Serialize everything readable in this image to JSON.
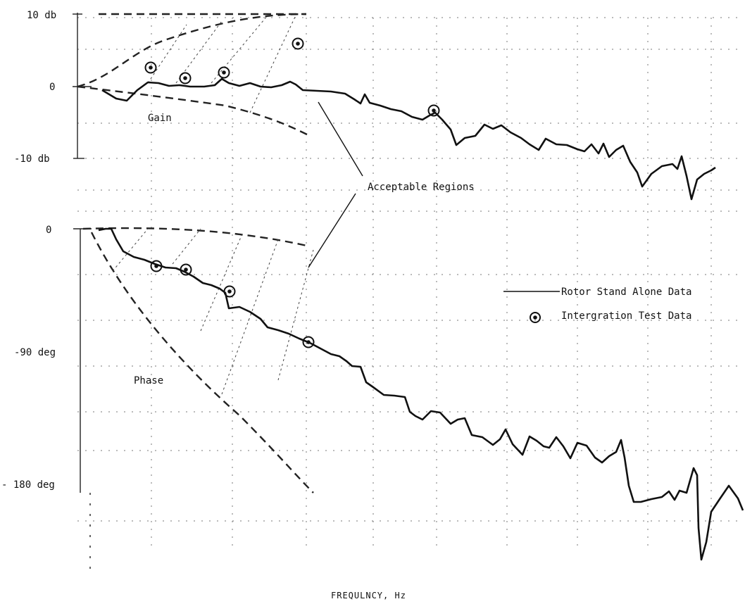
{
  "chart_data": [
    {
      "type": "line",
      "panel": "gain",
      "ylabel_ticks": [
        "10 db",
        "0",
        "-10 db"
      ],
      "ylim": [
        -10,
        10
      ],
      "annotation": "Gain",
      "x": [
        0.35,
        0.5,
        0.8,
        1.0,
        1.3,
        1.8,
        2.5,
        3.5,
        5.0,
        7.0,
        10.0
      ],
      "series": [
        {
          "name": "Rotor Stand Alone Data",
          "values": [
            0,
            -1.5,
            1.0,
            0.4,
            0.5,
            0.8,
            0.0,
            -0.3,
            -2.0,
            -4.0,
            -6.5
          ]
        },
        {
          "name": "Intergration Test Data",
          "points": [
            [
              0.5,
              2.5
            ],
            [
              0.65,
              1.1
            ],
            [
              0.9,
              2.0
            ],
            [
              1.5,
              6.0
            ],
            [
              3.2,
              -3.5
            ]
          ]
        }
      ],
      "bounds_upper": [
        [
          0.35,
          0.0
        ],
        [
          0.6,
          5.0
        ],
        [
          1.0,
          8.5
        ],
        [
          1.5,
          10.0
        ]
      ],
      "bounds_lower": [
        [
          0.35,
          0.0
        ],
        [
          0.6,
          -2.0
        ],
        [
          1.0,
          -4.5
        ],
        [
          1.5,
          -7.0
        ]
      ]
    },
    {
      "type": "line",
      "panel": "phase",
      "ylabel_ticks": [
        "0",
        "-90 deg",
        "- 180 deg"
      ],
      "ylim": [
        -180,
        0
      ],
      "annotation": "Phase",
      "x": [
        0.35,
        0.5,
        0.8,
        1.0,
        1.3,
        1.8,
        2.5,
        3.5,
        5.0,
        7.0,
        10.0
      ],
      "series": [
        {
          "name": "Rotor Stand Alone Data",
          "values": [
            0,
            -10,
            -28,
            -45,
            -62,
            -78,
            -103,
            -125,
            -140,
            -165,
            -180
          ]
        },
        {
          "name": "Intergration Test Data",
          "points": [
            [
              0.55,
              -25
            ],
            [
              0.7,
              -29
            ],
            [
              0.95,
              -43
            ],
            [
              1.5,
              -70
            ]
          ]
        }
      ],
      "bounds_upper": [
        [
          0.35,
          0
        ],
        [
          1.0,
          -2
        ],
        [
          1.5,
          -12
        ]
      ],
      "bounds_lower": [
        [
          0.35,
          0
        ],
        [
          0.7,
          -50
        ],
        [
          1.0,
          -110
        ],
        [
          1.5,
          -175
        ]
      ]
    }
  ],
  "notes": {
    "acceptable": "Acceptable Regions",
    "gain": "Gain",
    "phase": "Phase"
  },
  "legend": {
    "line_label": "Rotor Stand Alone Data",
    "marker_label": "Intergration Test Data"
  },
  "axis": {
    "gain_top": "10 db",
    "gain_mid": "0",
    "gain_bottom": "-10 db",
    "phase_top": "0",
    "phase_mid": "-90 deg",
    "phase_bottom": "- 180 deg",
    "xlabel": "FREQULNCY,  Hz"
  }
}
